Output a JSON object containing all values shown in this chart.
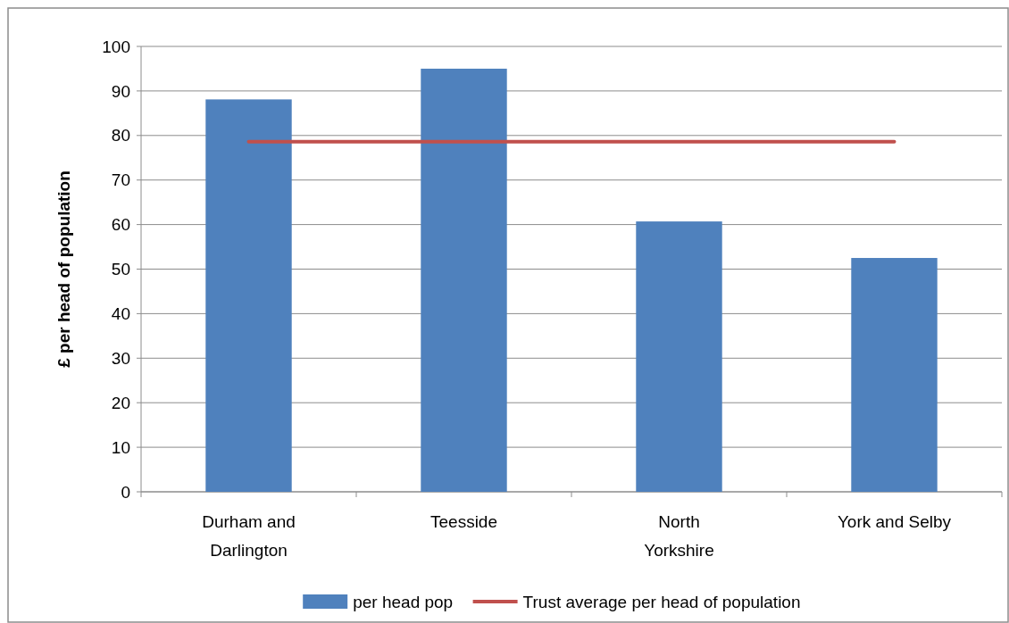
{
  "chart_data": {
    "type": "bar",
    "ylabel": "£ per head of population",
    "categories": [
      "Durham and Darlington",
      "Teesside",
      "North Yorkshire",
      "York and Selby"
    ],
    "series": [
      {
        "name": "per head pop",
        "color": "#4f81bd",
        "values": [
          88.1,
          95.0,
          60.7,
          52.5
        ]
      },
      {
        "name": "Trust average per head of population",
        "type": "line",
        "color": "#c0504d",
        "values": [
          78.6,
          78.6,
          78.6,
          78.6
        ],
        "marker": "none"
      }
    ],
    "ylim": [
      0,
      100
    ],
    "yticks": [
      0,
      10,
      20,
      30,
      40,
      50,
      60,
      70,
      80,
      90,
      100
    ],
    "grid": "y",
    "legend": "bottom"
  }
}
